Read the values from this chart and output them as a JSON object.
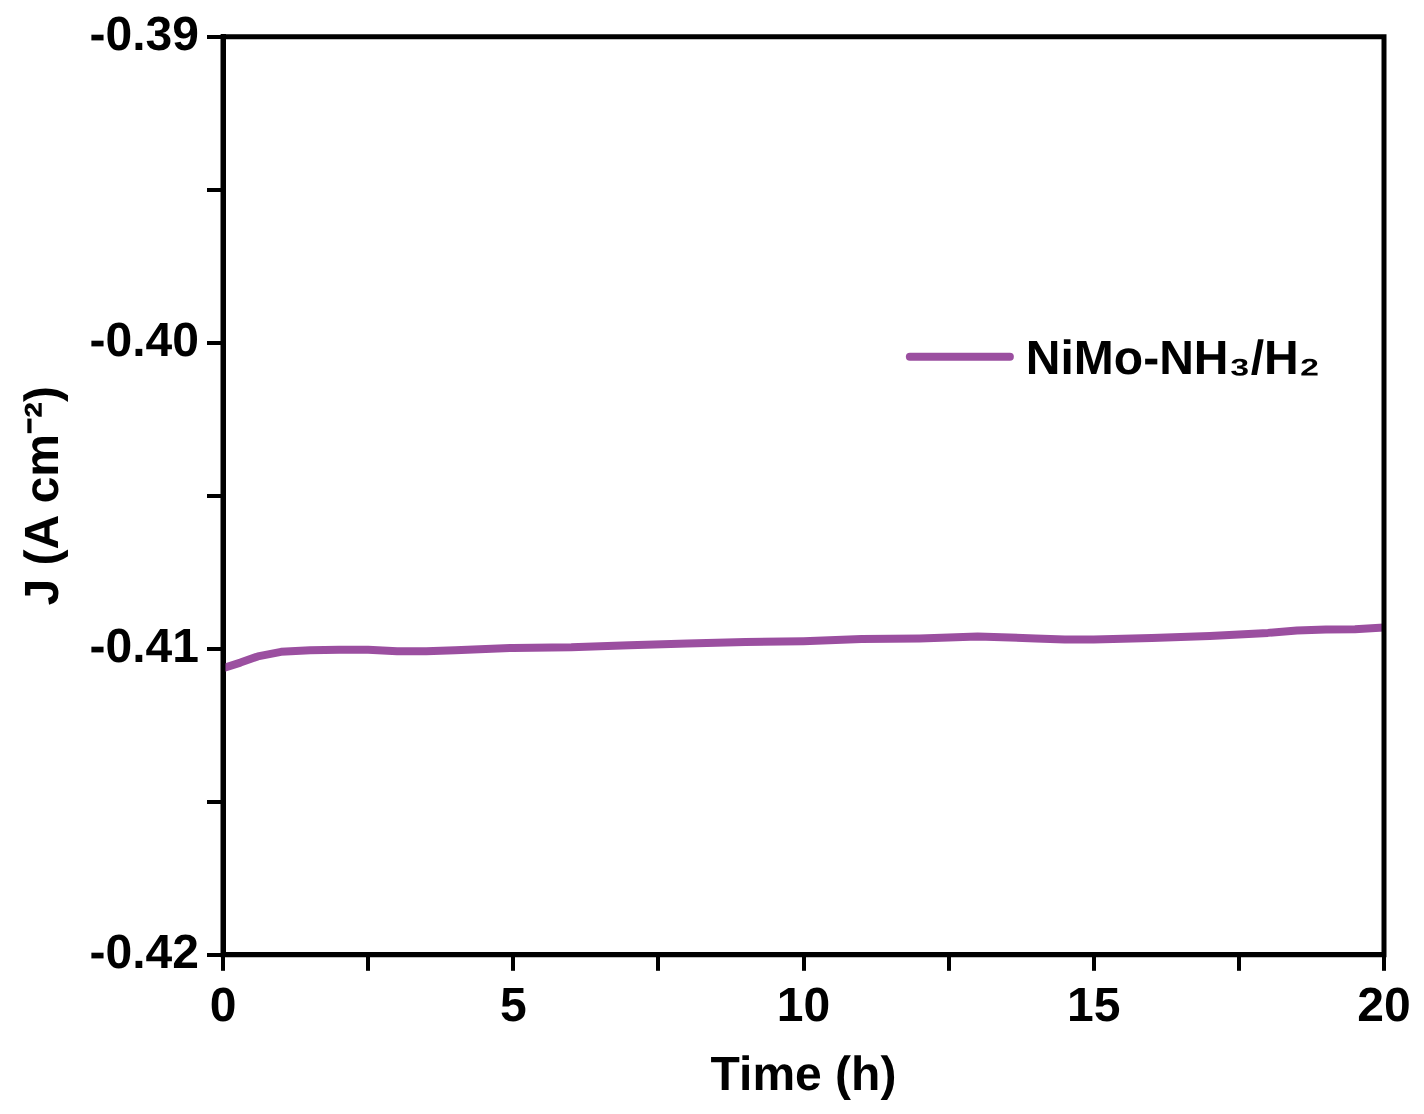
{
  "chart_data": {
    "type": "line",
    "xlabel": "Time (h)",
    "ylabel": "J (A cm⁻²)",
    "x": [
      0,
      0.3,
      0.6,
      1,
      1.5,
      2,
      2.5,
      3,
      3.5,
      4,
      5,
      6,
      7,
      8,
      9,
      10,
      11,
      12,
      13,
      14,
      14.5,
      15,
      16,
      17,
      18,
      18.5,
      19,
      19.5,
      20
    ],
    "series": [
      {
        "name": "NiMo-NH₃/H₂",
        "color": "#9b4fa0",
        "values": [
          -0.41063,
          -0.41045,
          -0.41025,
          -0.4101,
          -0.41005,
          -0.41003,
          -0.41003,
          -0.41008,
          -0.41008,
          -0.41005,
          -0.40997,
          -0.40995,
          -0.40988,
          -0.40983,
          -0.40978,
          -0.40975,
          -0.40968,
          -0.40966,
          -0.4096,
          -0.40966,
          -0.4097,
          -0.4097,
          -0.40965,
          -0.40958,
          -0.40948,
          -0.4094,
          -0.40937,
          -0.40936,
          -0.4093
        ]
      }
    ],
    "xlim": [
      0,
      20
    ],
    "xticks": [
      0,
      {
        "value": 2.5,
        "label": null
      },
      5,
      {
        "value": 7.5,
        "label": null
      },
      10,
      {
        "value": 12.5,
        "label": null
      },
      15,
      {
        "value": 17.5,
        "label": null
      },
      20
    ],
    "ylim": [
      -0.42,
      -0.39
    ],
    "yticks": [
      {
        "value": -0.42,
        "label": "-0.42"
      },
      {
        "value": -0.415,
        "label": null
      },
      {
        "value": -0.41,
        "label": "-0.41"
      },
      {
        "value": -0.405,
        "label": null
      },
      {
        "value": -0.4,
        "label": "-0.40"
      },
      {
        "value": -0.395,
        "label": null
      },
      {
        "value": -0.39,
        "label": "-0.39"
      }
    ],
    "legend": "top right",
    "grid": false,
    "marker": "none",
    "line_style": "solid"
  }
}
